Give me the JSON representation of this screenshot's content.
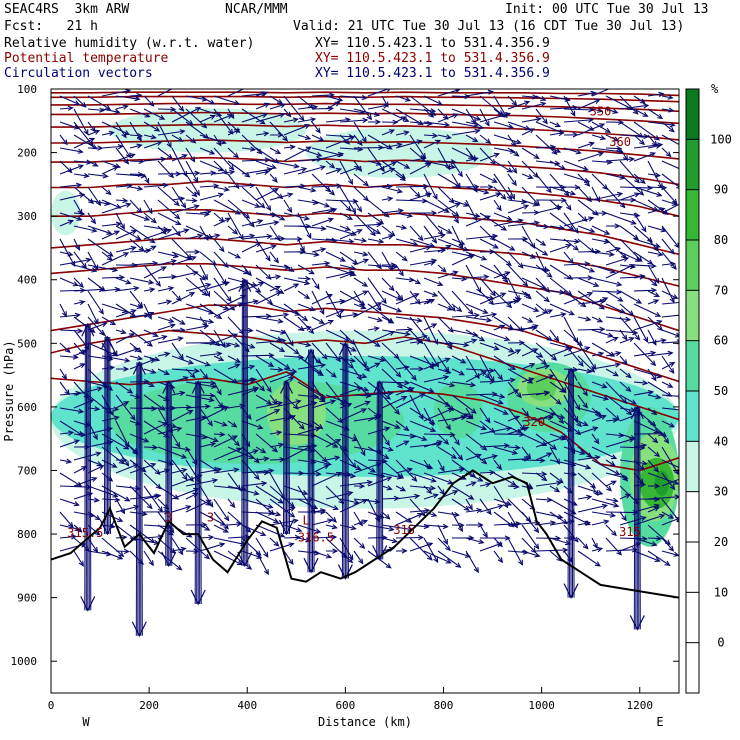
{
  "header": {
    "model": "SEAC4RS  3km ARW",
    "org": "NCAR/MMM",
    "init": "Init: 00 UTC Tue 30 Jul 13",
    "fcst": "Fcst:   21 h",
    "valid": "Valid: 21 UTC Tue 30 Jul 13 (16 CDT Tue 30 Jul 13)",
    "fields": [
      {
        "label": "Relative humidity (w.r.t. water)",
        "xy": "XY= 110.5.423.1 to 531.4.356.9",
        "color": "#000000"
      },
      {
        "label": "Potential temperature",
        "xy": "XY= 110.5.423.1 to 531.4.356.9",
        "color": "#8b0000"
      },
      {
        "label": "Circulation vectors",
        "xy": "XY= 110.5.423.1 to 531.4.356.9",
        "color": "#00007a"
      }
    ]
  },
  "chart_data": {
    "type": "cross-section",
    "xlabel": "Distance (km)",
    "ylabel": "Pressure (hPa)",
    "xlim": [
      0,
      1280
    ],
    "ylim": [
      1050,
      100
    ],
    "x_ticks": [
      0,
      200,
      400,
      600,
      800,
      1000,
      1200
    ],
    "y_ticks": [
      100,
      200,
      300,
      400,
      500,
      600,
      700,
      800,
      900,
      1000
    ],
    "end_labels": {
      "left": "W",
      "right": "E"
    },
    "colorbar": {
      "unit": "%",
      "ticks": [
        0,
        10,
        20,
        30,
        40,
        50,
        60,
        70,
        80,
        90,
        100
      ],
      "levels": [
        {
          "from": -10,
          "to": 30,
          "color": "#ffffff"
        },
        {
          "from": 30,
          "to": 40,
          "color": "#c8f5e6"
        },
        {
          "from": 40,
          "to": 50,
          "color": "#5fe3cc"
        },
        {
          "from": 50,
          "to": 60,
          "color": "#56dca0"
        },
        {
          "from": 60,
          "to": 70,
          "color": "#86e07e"
        },
        {
          "from": 70,
          "to": 80,
          "color": "#5bcf5b"
        },
        {
          "from": 80,
          "to": 90,
          "color": "#35b935"
        },
        {
          "from": 90,
          "to": 100,
          "color": "#1f9e2c"
        },
        {
          "from": 100,
          "to": 110,
          "color": "#0b7a1f"
        }
      ]
    },
    "rh_regions": [
      {
        "level": 30,
        "x": [
          0,
          1280
        ],
        "p_top": 480,
        "p_bot": 760
      },
      {
        "level": 40,
        "x": [
          0,
          1280
        ],
        "p_top": 520,
        "p_bot": 710
      },
      {
        "level": 50,
        "x": [
          120,
          720
        ],
        "p_top": 555,
        "p_bot": 690
      },
      {
        "level": 50,
        "x": [
          780,
          880
        ],
        "p_top": 560,
        "p_bot": 650
      },
      {
        "level": 50,
        "x": [
          930,
          1100
        ],
        "p_top": 530,
        "p_bot": 640
      },
      {
        "level": 50,
        "x": [
          1160,
          1280
        ],
        "p_top": 600,
        "p_bot": 820
      },
      {
        "level": 60,
        "x": [
          440,
          560
        ],
        "p_top": 560,
        "p_bot": 660
      },
      {
        "level": 60,
        "x": [
          950,
          1060
        ],
        "p_top": 540,
        "p_bot": 600
      },
      {
        "level": 60,
        "x": [
          1180,
          1280
        ],
        "p_top": 640,
        "p_bot": 780
      },
      {
        "level": 70,
        "x": [
          970,
          1030
        ],
        "p_top": 550,
        "p_bot": 590
      },
      {
        "level": 80,
        "x": [
          1200,
          1270
        ],
        "p_top": 680,
        "p_bot": 760
      },
      {
        "level": 90,
        "x": [
          1230,
          1260
        ],
        "p_top": 700,
        "p_bot": 740
      },
      {
        "level": 30,
        "x": [
          0,
          60
        ],
        "p_top": 260,
        "p_bot": 330
      },
      {
        "level": 30,
        "x": [
          120,
          520
        ],
        "p_top": 130,
        "p_bot": 200
      },
      {
        "level": 30,
        "x": [
          520,
          900
        ],
        "p_top": 160,
        "p_bot": 240
      }
    ],
    "theta_contours": [
      {
        "p": [
          555,
          560,
          565,
          560,
          555,
          565,
          545,
          585,
          580,
          575,
          580,
          590,
          610,
          640,
          690,
          700,
          680
        ]
      },
      {
        "p": [
          515,
          500,
          490,
          480,
          485,
          490,
          500,
          495,
          500,
          490,
          500,
          520,
          540,
          560,
          580,
          600,
          620
        ]
      },
      {
        "p": [
          480,
          470,
          460,
          450,
          440,
          440,
          450,
          445,
          450,
          455,
          460,
          470,
          480,
          500,
          520,
          540,
          560
        ]
      },
      {
        "p": [
          390,
          385,
          380,
          375,
          375,
          380,
          385,
          380,
          385,
          385,
          390,
          400,
          410,
          420,
          440,
          460,
          480
        ]
      },
      {
        "p": [
          350,
          345,
          340,
          335,
          335,
          340,
          345,
          340,
          345,
          345,
          350,
          355,
          360,
          370,
          380,
          395,
          410
        ]
      },
      {
        "p": [
          300,
          300,
          295,
          290,
          290,
          295,
          300,
          295,
          300,
          295,
          300,
          305,
          310,
          320,
          330,
          345,
          360
        ]
      },
      {
        "p": [
          255,
          255,
          250,
          250,
          245,
          250,
          255,
          250,
          255,
          250,
          255,
          258,
          262,
          268,
          275,
          285,
          300
        ]
      },
      {
        "p": [
          215,
          215,
          212,
          210,
          208,
          210,
          214,
          210,
          214,
          212,
          215,
          218,
          222,
          226,
          232,
          240,
          250
        ]
      },
      {
        "p": [
          185,
          185,
          183,
          182,
          180,
          182,
          184,
          182,
          184,
          183,
          185,
          187,
          190,
          194,
          198,
          204,
          210
        ]
      },
      {
        "p": [
          160,
          160,
          158,
          157,
          156,
          157,
          159,
          157,
          159,
          158,
          160,
          161,
          163,
          166,
          170,
          174,
          180
        ]
      },
      {
        "p": [
          140,
          140,
          139,
          138,
          137,
          138,
          139,
          138,
          139,
          138,
          140,
          141,
          142,
          144,
          147,
          150,
          154
        ]
      },
      {
        "p": [
          125,
          125,
          124,
          123,
          123,
          124,
          124,
          123,
          124,
          124,
          125,
          126,
          127,
          128,
          130,
          132,
          135
        ]
      },
      {
        "p": [
          113,
          113,
          112,
          112,
          112,
          112,
          113,
          112,
          113,
          112,
          113,
          113,
          114,
          115,
          116,
          118,
          120
        ]
      },
      {
        "p": [
          106,
          106,
          105,
          105,
          105,
          105,
          106,
          105,
          106,
          105,
          106,
          106,
          106,
          107,
          107,
          108,
          110
        ]
      }
    ],
    "theta_labels": [
      {
        "text": "315.5",
        "x": 70,
        "p": 805
      },
      {
        "text": "3",
        "x": 240,
        "p": 780
      },
      {
        "text": "3",
        "x": 325,
        "p": 780
      },
      {
        "text": "L",
        "x": 520,
        "p": 785
      },
      {
        "text": "316.5",
        "x": 540,
        "p": 812
      },
      {
        "text": "315",
        "x": 720,
        "p": 800
      },
      {
        "text": "320",
        "x": 985,
        "p": 630
      },
      {
        "text": "315",
        "x": 1180,
        "p": 803
      },
      {
        "text": "350",
        "x": 1120,
        "p": 142
      },
      {
        "text": "360",
        "x": 1160,
        "p": 190
      }
    ],
    "terrain": {
      "x": [
        0,
        40,
        70,
        100,
        120,
        150,
        180,
        210,
        240,
        270,
        300,
        330,
        360,
        400,
        430,
        460,
        490,
        520,
        550,
        590,
        620,
        660,
        700,
        740,
        780,
        820,
        860,
        900,
        940,
        970,
        990,
        1010,
        1040,
        1080,
        1120,
        1160,
        1200,
        1240,
        1280
      ],
      "p": [
        840,
        830,
        810,
        790,
        760,
        820,
        800,
        830,
        780,
        800,
        800,
        840,
        860,
        810,
        780,
        790,
        870,
        875,
        860,
        870,
        860,
        840,
        820,
        790,
        760,
        720,
        700,
        720,
        710,
        720,
        780,
        800,
        840,
        860,
        880,
        885,
        890,
        895,
        900
      ]
    },
    "vector_color": "#0a0a6e",
    "updraft_columns": [
      {
        "x": 75,
        "p_top": 470,
        "p_bot": 920
      },
      {
        "x": 115,
        "p_top": 490,
        "p_bot": 800
      },
      {
        "x": 180,
        "p_top": 530,
        "p_bot": 960
      },
      {
        "x": 240,
        "p_top": 560,
        "p_bot": 850
      },
      {
        "x": 300,
        "p_top": 560,
        "p_bot": 910
      },
      {
        "x": 395,
        "p_top": 400,
        "p_bot": 850
      },
      {
        "x": 480,
        "p_top": 560,
        "p_bot": 800
      },
      {
        "x": 530,
        "p_top": 510,
        "p_bot": 860
      },
      {
        "x": 600,
        "p_top": 500,
        "p_bot": 870
      },
      {
        "x": 670,
        "p_top": 560,
        "p_bot": 840
      },
      {
        "x": 1060,
        "p_top": 540,
        "p_bot": 900
      },
      {
        "x": 1195,
        "p_top": 600,
        "p_bot": 950
      }
    ]
  }
}
